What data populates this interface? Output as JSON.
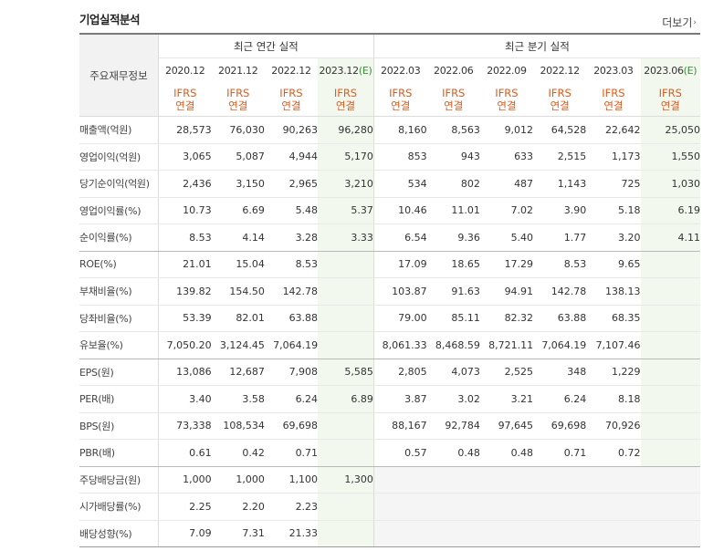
{
  "title": "기업실적분석",
  "more_label": "더보기",
  "row_header": "주요재무정보",
  "group_annual": "최근 연간 실적",
  "group_quarter": "최근 분기 실적",
  "periods": [
    "2020.12",
    "2021.12",
    "2022.12",
    "2023.12",
    "2022.03",
    "2022.06",
    "2022.09",
    "2022.12",
    "2023.03",
    "2023.06"
  ],
  "estimate_mark": "(E)",
  "ifrs_line1": "IFRS",
  "ifrs_line2": "연결",
  "rows": [
    {
      "label": "매출액(억원)",
      "values": [
        "28,573",
        "76,030",
        "90,263",
        "96,280",
        "8,160",
        "8,563",
        "9,012",
        "64,528",
        "22,642",
        "25,050"
      ]
    },
    {
      "label": "영업이익(억원)",
      "values": [
        "3,065",
        "5,087",
        "4,944",
        "5,170",
        "853",
        "943",
        "633",
        "2,515",
        "1,173",
        "1,550"
      ]
    },
    {
      "label": "당기순이익(억원)",
      "values": [
        "2,436",
        "3,150",
        "2,965",
        "3,210",
        "534",
        "802",
        "487",
        "1,143",
        "725",
        "1,030"
      ]
    },
    {
      "label": "영업이익률(%)",
      "values": [
        "10.73",
        "6.69",
        "5.48",
        "5.37",
        "10.46",
        "11.01",
        "7.02",
        "3.90",
        "5.18",
        "6.19"
      ]
    },
    {
      "label": "순이익률(%)",
      "values": [
        "8.53",
        "4.14",
        "3.28",
        "3.33",
        "6.54",
        "9.36",
        "5.40",
        "1.77",
        "3.20",
        "4.11"
      ]
    },
    {
      "label": "ROE(%)",
      "values": [
        "21.01",
        "15.04",
        "8.53",
        "",
        "17.09",
        "18.65",
        "17.29",
        "8.53",
        "9.65",
        ""
      ]
    },
    {
      "label": "부채비율(%)",
      "values": [
        "139.82",
        "154.50",
        "142.78",
        "",
        "103.87",
        "91.63",
        "94.91",
        "142.78",
        "138.13",
        ""
      ]
    },
    {
      "label": "당좌비율(%)",
      "values": [
        "53.39",
        "82.01",
        "63.88",
        "",
        "79.00",
        "85.11",
        "82.32",
        "63.88",
        "68.35",
        ""
      ]
    },
    {
      "label": "유보율(%)",
      "values": [
        "7,050.20",
        "3,124.45",
        "7,064.19",
        "",
        "8,061.33",
        "8,468.59",
        "8,721.11",
        "7,064.19",
        "7,107.46",
        ""
      ]
    },
    {
      "label": "EPS(원)",
      "values": [
        "13,086",
        "12,687",
        "7,908",
        "5,585",
        "2,805",
        "4,073",
        "2,525",
        "348",
        "1,229",
        ""
      ]
    },
    {
      "label": "PER(배)",
      "values": [
        "3.40",
        "3.58",
        "6.24",
        "6.89",
        "3.87",
        "3.02",
        "3.21",
        "6.24",
        "8.18",
        ""
      ]
    },
    {
      "label": "BPS(원)",
      "values": [
        "73,338",
        "108,534",
        "69,698",
        "",
        "88,167",
        "92,784",
        "97,645",
        "69,698",
        "70,926",
        ""
      ]
    },
    {
      "label": "PBR(배)",
      "values": [
        "0.61",
        "0.42",
        "0.71",
        "",
        "0.57",
        "0.48",
        "0.48",
        "0.71",
        "0.72",
        ""
      ]
    },
    {
      "label": "주당배당금(원)",
      "values": [
        "1,000",
        "1,000",
        "1,100",
        "1,300",
        "",
        "",
        "",
        "",
        "",
        ""
      ]
    },
    {
      "label": "시가배당률(%)",
      "values": [
        "2.25",
        "2.20",
        "2.23",
        "",
        "",
        "",
        "",
        "",
        "",
        ""
      ]
    },
    {
      "label": "배당성향(%)",
      "values": [
        "7.09",
        "7.31",
        "21.33",
        "",
        "",
        "",
        "",
        "",
        "",
        ""
      ]
    }
  ]
}
